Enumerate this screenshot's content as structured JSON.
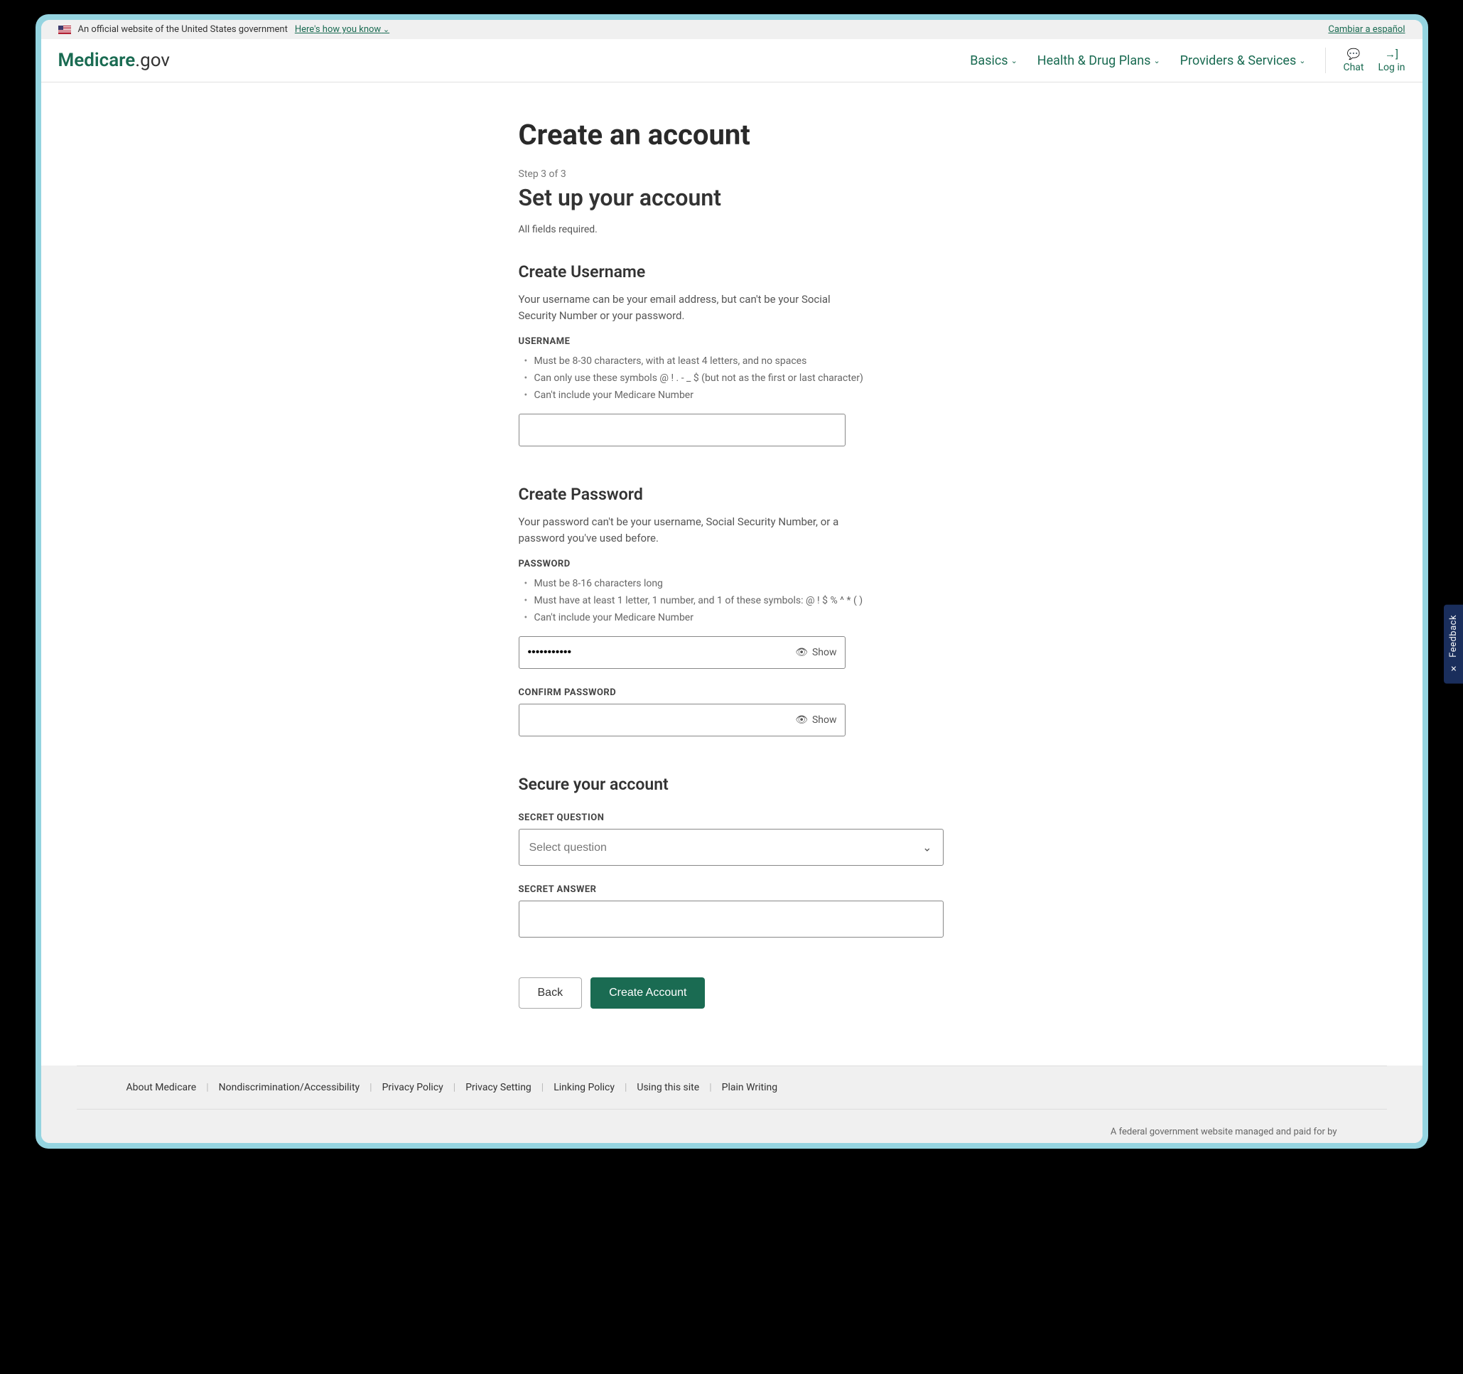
{
  "banner": {
    "official_text": "An official website of the United States government",
    "how_you_know": "Here's how you know",
    "language_toggle": "Cambiar a español"
  },
  "header": {
    "logo_brand": "Medicare",
    "logo_domain": ".gov",
    "nav": {
      "basics": "Basics",
      "health_drug": "Health & Drug Plans",
      "providers": "Providers & Services"
    },
    "actions": {
      "chat": "Chat",
      "login": "Log in"
    }
  },
  "page": {
    "title": "Create an account",
    "step": "Step 3 of 3",
    "subtitle": "Set up your account",
    "required_note": "All fields required."
  },
  "username_section": {
    "heading": "Create Username",
    "help": "Your username can be your email address, but can't be your Social Security Number or your password.",
    "label": "USERNAME",
    "rules": [
      "Must be 8-30 characters, with at least 4 letters, and no spaces",
      "Can only use these symbols @ ! . - _ $ (but not as the first or last character)",
      "Can't include your Medicare Number"
    ],
    "value": ""
  },
  "password_section": {
    "heading": "Create Password",
    "help": "Your password can't be your username, Social Security Number, or a password you've used before.",
    "label": "PASSWORD",
    "rules": [
      "Must be 8-16 characters long",
      "Must have at least 1 letter, 1 number, and 1 of these symbols: @ ! $ % ^ * ( )",
      "Can't include your Medicare Number"
    ],
    "value": "•••••••••••",
    "show_label": "Show",
    "confirm_label": "CONFIRM PASSWORD",
    "confirm_value": "",
    "confirm_show_label": "Show"
  },
  "secure_section": {
    "heading": "Secure your account",
    "question_label": "SECRET QUESTION",
    "question_placeholder": "Select question",
    "answer_label": "SECRET ANSWER",
    "answer_value": ""
  },
  "buttons": {
    "back": "Back",
    "create": "Create Account"
  },
  "footer": {
    "links": [
      "About Medicare",
      "Nondiscrimination/Accessibility",
      "Privacy Policy",
      "Privacy Setting",
      "Linking Policy",
      "Using this site",
      "Plain Writing"
    ],
    "bottom_text": "A federal government website managed and paid for by"
  },
  "feedback": {
    "label": "Feedback"
  },
  "colors": {
    "brand_green": "#1a6b52",
    "frame_teal": "#95d4e0",
    "banner_bg": "#f0f0f0",
    "feedback_bg": "#1a2e5c"
  }
}
